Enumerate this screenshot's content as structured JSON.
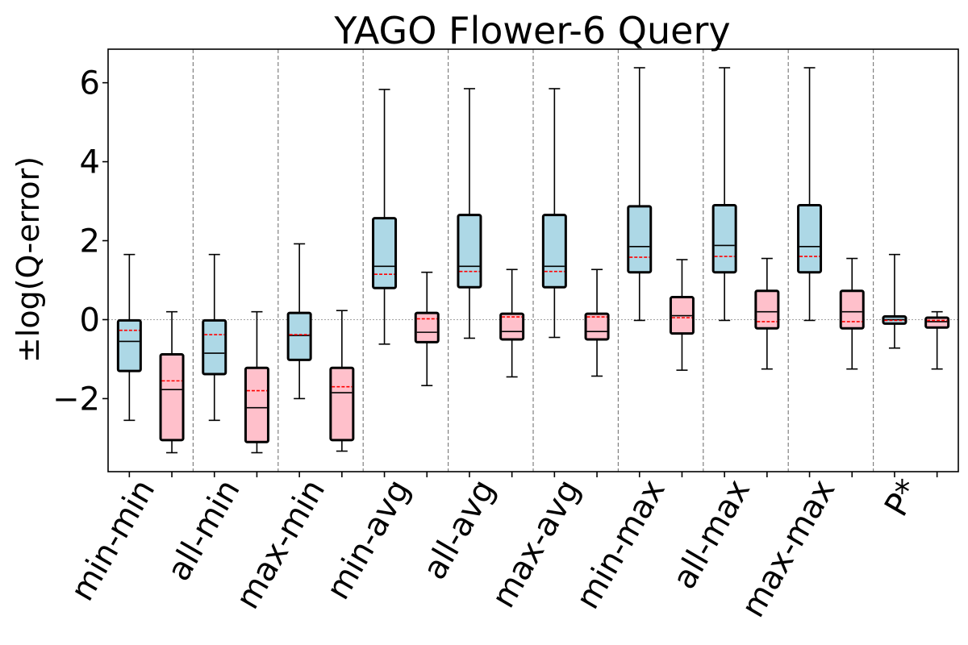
{
  "chart_data": {
    "type": "box",
    "title": "YAGO Flower-6 Query",
    "xlabel": "",
    "ylabel": "±log(Q-error)",
    "ylim": [
      -3.85,
      6.85
    ],
    "yticks": [
      -2,
      0,
      2,
      4,
      6
    ],
    "ytick_labels": [
      "−2",
      "0",
      "2",
      "4",
      "6"
    ],
    "grid": "dashed vertical separators between groups, dotted horizontal line at 0",
    "legend": "none",
    "categories": [
      "min-min",
      "all-min",
      "max-min",
      "min-avg",
      "all-avg",
      "max-avg",
      "min-max",
      "all-max",
      "max-max",
      "P*"
    ],
    "colors": {
      "series_a": "#add8e6",
      "series_b": "#ffc0cb",
      "median": "#000000",
      "mean": "#ff0000",
      "separator": "#808080"
    },
    "series": [
      {
        "color": "#add8e6",
        "boxes": [
          {
            "whislo": -2.55,
            "q1": -1.3,
            "med": -0.55,
            "mean": -0.27,
            "q3": -0.02,
            "whishi": 1.65
          },
          {
            "whislo": -2.55,
            "q1": -1.38,
            "med": -0.85,
            "mean": -0.38,
            "q3": -0.02,
            "whishi": 1.65
          },
          {
            "whislo": -2.0,
            "q1": -1.02,
            "med": -0.4,
            "mean": -0.38,
            "q3": 0.17,
            "whishi": 1.92
          },
          {
            "whislo": -0.62,
            "q1": 0.8,
            "med": 1.35,
            "mean": 1.15,
            "q3": 2.57,
            "whishi": 5.83
          },
          {
            "whislo": -0.47,
            "q1": 0.82,
            "med": 1.35,
            "mean": 1.22,
            "q3": 2.65,
            "whishi": 5.85
          },
          {
            "whislo": -0.45,
            "q1": 0.82,
            "med": 1.35,
            "mean": 1.22,
            "q3": 2.65,
            "whishi": 5.85
          },
          {
            "whislo": -0.02,
            "q1": 1.2,
            "med": 1.85,
            "mean": 1.58,
            "q3": 2.87,
            "whishi": 6.38
          },
          {
            "whislo": -0.02,
            "q1": 1.2,
            "med": 1.88,
            "mean": 1.6,
            "q3": 2.9,
            "whishi": 6.38
          },
          {
            "whislo": -0.02,
            "q1": 1.2,
            "med": 1.85,
            "mean": 1.6,
            "q3": 2.9,
            "whishi": 6.38
          },
          {
            "whislo": -0.72,
            "q1": -0.1,
            "med": 0.0,
            "mean": -0.02,
            "q3": 0.08,
            "whishi": 1.65
          }
        ]
      },
      {
        "color": "#ffc0cb",
        "boxes": [
          {
            "whislo": -3.37,
            "q1": -3.05,
            "med": -1.77,
            "mean": -1.55,
            "q3": -0.88,
            "whishi": 0.2
          },
          {
            "whislo": -3.37,
            "q1": -3.1,
            "med": -2.23,
            "mean": -1.8,
            "q3": -1.22,
            "whishi": 0.2
          },
          {
            "whislo": -3.33,
            "q1": -3.05,
            "med": -1.85,
            "mean": -1.7,
            "q3": -1.22,
            "whishi": 0.23
          },
          {
            "whislo": -1.67,
            "q1": -0.57,
            "med": -0.32,
            "mean": 0.02,
            "q3": 0.17,
            "whishi": 1.2
          },
          {
            "whislo": -1.45,
            "q1": -0.5,
            "med": -0.3,
            "mean": 0.07,
            "q3": 0.15,
            "whishi": 1.27
          },
          {
            "whislo": -1.43,
            "q1": -0.5,
            "med": -0.3,
            "mean": 0.07,
            "q3": 0.15,
            "whishi": 1.27
          },
          {
            "whislo": -1.28,
            "q1": -0.35,
            "med": 0.1,
            "mean": 0.05,
            "q3": 0.57,
            "whishi": 1.52
          },
          {
            "whislo": -1.25,
            "q1": -0.22,
            "med": 0.2,
            "mean": -0.05,
            "q3": 0.73,
            "whishi": 1.55
          },
          {
            "whislo": -1.25,
            "q1": -0.22,
            "med": 0.2,
            "mean": -0.05,
            "q3": 0.73,
            "whishi": 1.55
          },
          {
            "whislo": -1.25,
            "q1": -0.2,
            "med": -0.05,
            "mean": -0.02,
            "q3": 0.05,
            "whishi": 0.2
          }
        ]
      }
    ]
  }
}
